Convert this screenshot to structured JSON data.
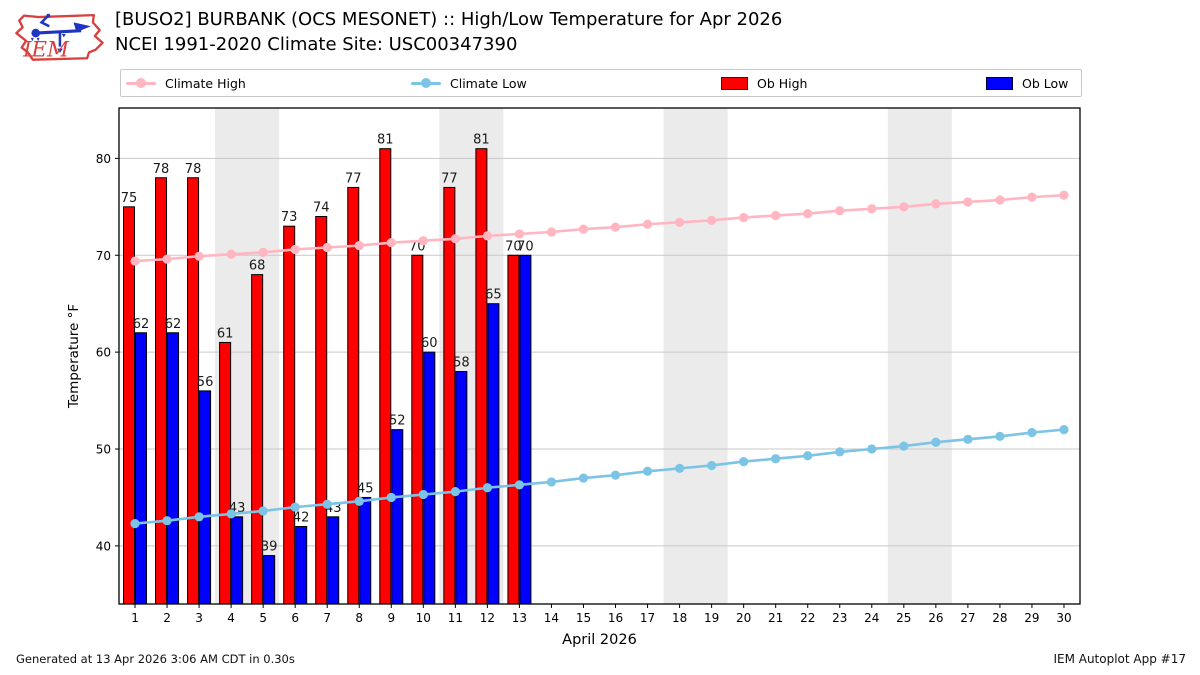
{
  "header": {
    "title": "[BUSO2] BURBANK (OCS MESONET) :: High/Low Temperature for Apr 2026",
    "subtitle": "NCEI 1991-2020 Climate Site: USC00347390",
    "logo_text": "IEM"
  },
  "legend": {
    "items": [
      {
        "label": "Climate High",
        "kind": "line",
        "color": "#ffb6c1"
      },
      {
        "label": "Climate Low",
        "kind": "line",
        "color": "#7cc4e6"
      },
      {
        "label": "Ob High",
        "kind": "rect",
        "color": "#ff0000"
      },
      {
        "label": "Ob Low",
        "kind": "rect",
        "color": "#0000ff"
      }
    ]
  },
  "footer": {
    "left": "Generated at 13 Apr 2026 3:06 AM CDT in 0.30s",
    "right": "IEM Autoplot App #17"
  },
  "chart_data": {
    "type": "bar",
    "title": "",
    "xlabel": "April 2026",
    "ylabel": "Temperature °F",
    "days": [
      1,
      2,
      3,
      4,
      5,
      6,
      7,
      8,
      9,
      10,
      11,
      12,
      13,
      14,
      15,
      16,
      17,
      18,
      19,
      20,
      21,
      22,
      23,
      24,
      25,
      26,
      27,
      28,
      29,
      30
    ],
    "yticks": [
      40,
      50,
      60,
      70,
      80
    ],
    "ylim": [
      34,
      85.2
    ],
    "grid": true,
    "legend_position": "top",
    "weekend_bands": [
      [
        4,
        5
      ],
      [
        11,
        12
      ],
      [
        18,
        19
      ],
      [
        25,
        26
      ]
    ],
    "colors": {
      "ob_high": "#ff0000",
      "ob_low": "#0000ff",
      "climate_high": "#ffb6c1",
      "climate_low": "#7cc4e6",
      "weekend_band": "#ebebeb",
      "gridline": "#c9c9c9",
      "bar_edge": "#000000",
      "value_label": "#1a1a1a"
    },
    "series": [
      {
        "name": "Ob High",
        "kind": "bar",
        "values": [
          75,
          78,
          78,
          61,
          68,
          73,
          74,
          77,
          81,
          70,
          77,
          81,
          70
        ]
      },
      {
        "name": "Ob Low",
        "kind": "bar",
        "values": [
          62,
          62,
          56,
          43,
          39,
          42,
          43,
          45,
          52,
          60,
          58,
          65,
          70
        ]
      },
      {
        "name": "Climate High",
        "kind": "line",
        "values": [
          69.4,
          69.6,
          69.9,
          70.1,
          70.3,
          70.6,
          70.8,
          71.0,
          71.3,
          71.5,
          71.7,
          72.0,
          72.2,
          72.4,
          72.7,
          72.9,
          73.2,
          73.4,
          73.6,
          73.9,
          74.1,
          74.3,
          74.6,
          74.8,
          75.0,
          75.3,
          75.5,
          75.7,
          76.0,
          76.2
        ]
      },
      {
        "name": "Climate Low",
        "kind": "line",
        "values": [
          42.3,
          42.6,
          43.0,
          43.3,
          43.6,
          44.0,
          44.3,
          44.6,
          45.0,
          45.3,
          45.6,
          46.0,
          46.3,
          46.6,
          47.0,
          47.3,
          47.7,
          48.0,
          48.3,
          48.7,
          49.0,
          49.3,
          49.7,
          50.0,
          50.3,
          50.7,
          51.0,
          51.3,
          51.7,
          52.0
        ]
      }
    ]
  }
}
